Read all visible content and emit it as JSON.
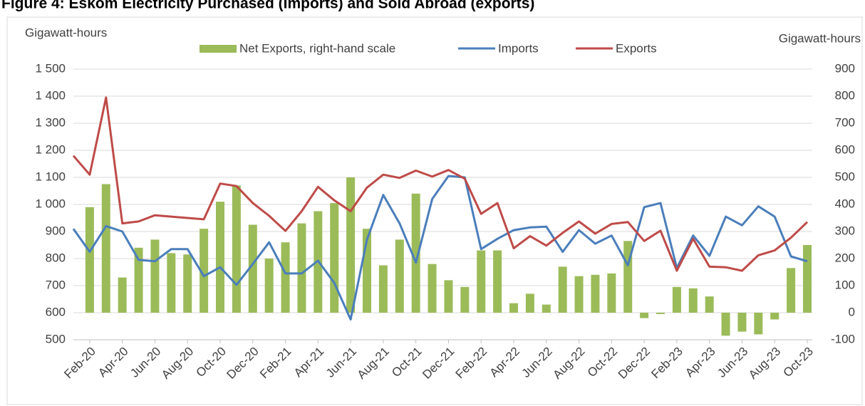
{
  "chart_data": {
    "type": "combo",
    "title": "Figure 4: Eskom Electricity Purchased (Imports) and Sold Abroad (exports)",
    "y_label": "Gigawatt-hours",
    "y2_label": "Gigawatt-hours",
    "categories": [
      null,
      "Feb-20",
      null,
      "Apr-20",
      null,
      "Jun-20",
      null,
      "Aug-20",
      null,
      "Oct-20",
      null,
      "Dec-20",
      null,
      "Feb-21",
      null,
      "Apr-21",
      null,
      "Jun-21",
      null,
      "Aug-21",
      null,
      "Oct-21",
      null,
      "Dec-21",
      null,
      "Feb-22",
      null,
      "Apr-22",
      null,
      "Jun-22",
      null,
      "Aug-22",
      null,
      "Oct-22",
      null,
      "Dec-22",
      null,
      "Feb-23",
      null,
      "Apr-23",
      null,
      "Jun-23",
      null,
      "Aug-23",
      null,
      "Oct-23"
    ],
    "series": [
      {
        "name": "Net Exports, right-hand scale",
        "type": "bar",
        "axis": "y2",
        "color": "#9bbb59",
        "values": [
          null,
          390,
          475,
          130,
          240,
          270,
          220,
          215,
          310,
          410,
          470,
          325,
          200,
          260,
          330,
          375,
          405,
          500,
          310,
          175,
          270,
          440,
          180,
          120,
          95,
          230,
          230,
          35,
          70,
          30,
          170,
          135,
          140,
          145,
          265,
          -20,
          -5,
          95,
          90,
          60,
          -85,
          -70,
          -80,
          -25,
          165,
          250
        ]
      },
      {
        "name": "Imports",
        "type": "line",
        "color": "#4a7ebb",
        "values": [
          910,
          825,
          920,
          900,
          795,
          790,
          835,
          835,
          735,
          768,
          703,
          780,
          860,
          745,
          745,
          792,
          710,
          575,
          870,
          1035,
          930,
          785,
          1020,
          1105,
          1100,
          835,
          873,
          905,
          915,
          918,
          825,
          905,
          855,
          885,
          775,
          990,
          1005,
          765,
          885,
          810,
          955,
          923,
          993,
          955,
          808,
          790
        ]
      },
      {
        "name": "Exports",
        "type": "line",
        "color": "#be4b48",
        "values": [
          1180,
          1110,
          1395,
          930,
          937,
          960,
          955,
          950,
          945,
          1077,
          1068,
          1005,
          958,
          902,
          975,
          1065,
          1015,
          975,
          1062,
          1110,
          1098,
          1125,
          1103,
          1127,
          1095,
          965,
          1005,
          838,
          883,
          848,
          895,
          937,
          892,
          928,
          935,
          865,
          903,
          755,
          873,
          770,
          768,
          755,
          812,
          830,
          877,
          935
        ]
      }
    ],
    "ylim": [
      500,
      1500
    ],
    "yticks": [
      {
        "value": 500,
        "label": "500"
      },
      600,
      700,
      800,
      900,
      {
        "value": 1000,
        "label": "1 000"
      },
      {
        "value": 1100,
        "label": "1 100"
      },
      {
        "value": 1200,
        "label": "1 200"
      },
      {
        "value": 1300,
        "label": "1 300"
      },
      {
        "value": 1400,
        "label": "1 400"
      },
      {
        "value": 1500,
        "label": "1 500"
      }
    ],
    "y2lim": [
      -100,
      900
    ],
    "y2ticks": [
      -100,
      0,
      100,
      200,
      300,
      400,
      500,
      600,
      700,
      800,
      900
    ],
    "grid": true,
    "legend": "top"
  }
}
